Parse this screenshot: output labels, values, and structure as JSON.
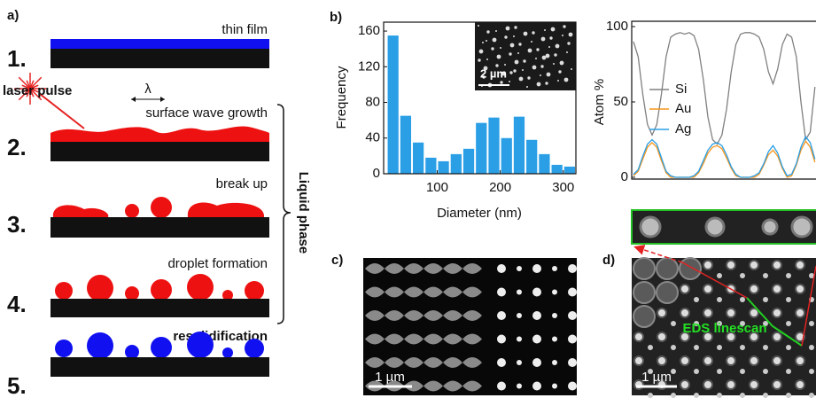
{
  "chart_data": [
    {
      "type": "histogram",
      "panel": "b)",
      "ylabel": "Frequency",
      "xlabel": "Diameter (nm)",
      "inset_scale": "2 µm",
      "bins": [
        20,
        40,
        60,
        80,
        100,
        120,
        140,
        160,
        180,
        200,
        220,
        240,
        260,
        280,
        300,
        320
      ],
      "values": [
        155,
        65,
        35,
        18,
        14,
        22,
        28,
        57,
        63,
        40,
        64,
        38,
        22,
        10,
        8
      ],
      "color": "#2a9fe6",
      "xlim": [
        15,
        320
      ],
      "ylim": [
        0,
        170
      ],
      "xticks": [
        100,
        200,
        300
      ],
      "yticks": [
        0,
        40,
        80,
        120,
        160
      ]
    },
    {
      "type": "line",
      "ylabel": "Atom %",
      "categories": [
        null,
        null,
        null,
        null,
        null,
        null,
        null,
        null,
        null,
        null,
        null,
        null,
        null,
        null,
        null,
        null,
        null,
        null,
        null,
        null,
        null,
        null,
        null,
        null,
        null,
        null,
        null,
        null,
        null,
        null,
        null,
        null,
        null,
        null,
        null,
        null,
        null,
        null,
        null,
        null
      ],
      "series": [
        {
          "name": "Si",
          "color": "#808080",
          "values": [
            90,
            80,
            55,
            35,
            28,
            35,
            55,
            80,
            93,
            95,
            96,
            95,
            96,
            94,
            85,
            65,
            40,
            25,
            22,
            28,
            45,
            70,
            88,
            95,
            96,
            96,
            95,
            93,
            85,
            70,
            62,
            72,
            88,
            95,
            93,
            80,
            50,
            25,
            30,
            60
          ]
        },
        {
          "name": "Au",
          "color": "#f5961e",
          "values": [
            1,
            4,
            12,
            20,
            23,
            20,
            11,
            3,
            0,
            0,
            0,
            0,
            0,
            0,
            3,
            9,
            16,
            20,
            21,
            19,
            13,
            6,
            1,
            0,
            0,
            0,
            0,
            2,
            8,
            15,
            18,
            14,
            6,
            0,
            1,
            8,
            18,
            24,
            20,
            10
          ]
        },
        {
          "name": "Ag",
          "color": "#2a9fe6",
          "values": [
            2,
            5,
            14,
            22,
            25,
            22,
            13,
            4,
            1,
            0,
            0,
            0,
            0,
            1,
            4,
            11,
            18,
            22,
            23,
            21,
            15,
            7,
            2,
            0,
            0,
            0,
            1,
            3,
            9,
            17,
            21,
            16,
            7,
            1,
            2,
            9,
            20,
            27,
            23,
            12
          ]
        }
      ],
      "ylim": [
        0,
        100
      ],
      "yticks": [
        0,
        50,
        100
      ]
    }
  ],
  "panel_a": {
    "label": "a)",
    "steps": [
      {
        "number": "1.",
        "caption": "thin film"
      },
      {
        "number": "2.",
        "caption": "surface wave growth"
      },
      {
        "number": "3.",
        "caption": "break up"
      },
      {
        "number": "4.",
        "caption": "droplet formation"
      },
      {
        "number": "5.",
        "caption": "resolidification"
      }
    ],
    "laser": "laser pulse",
    "wavelength": "λ",
    "bracket": "Liquid phase"
  },
  "panel_c": {
    "label": "c)",
    "scale": "1 µm"
  },
  "panel_d": {
    "label": "d)",
    "scale": "1 µm",
    "annotation": "EDS linescan"
  }
}
